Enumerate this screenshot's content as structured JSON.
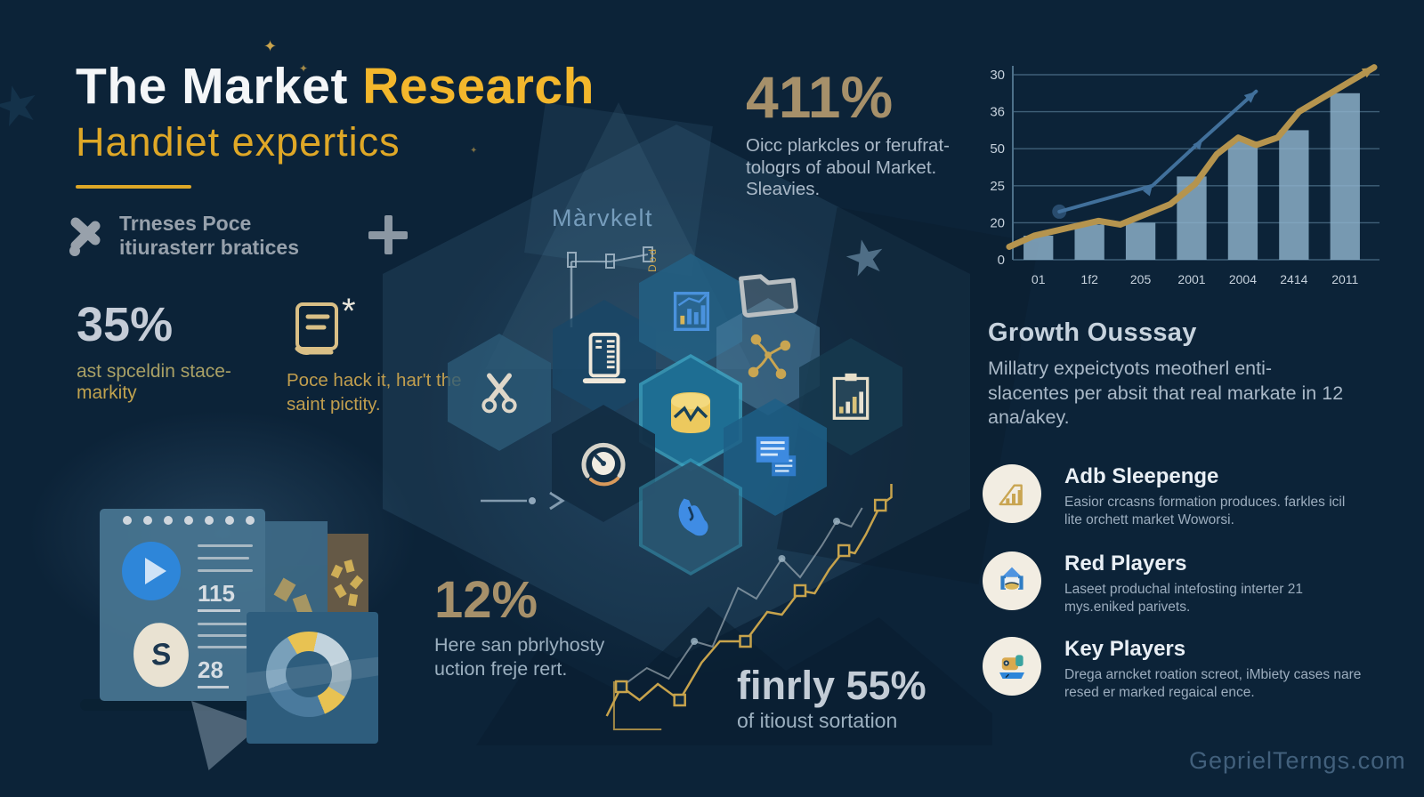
{
  "header": {
    "title_white": "The Market ",
    "title_accent": "Research",
    "subtitle": "Handiet expertics",
    "tagline_line1": "Trneses Poce",
    "tagline_line2": "itiurasterr bratices"
  },
  "deco": {
    "marvkelt_label": "Màrvkelt",
    "doc_label": "Dod",
    "star_glyph": "★",
    "sparkle_glyph": "✦"
  },
  "stats": {
    "s411": {
      "value": "411%",
      "desc": "Oicc plarkcles or ferufrat- tologrs of aboul Market. Sleavies."
    },
    "s35": {
      "value": "35%",
      "desc_line1": "ast spceldin stace-",
      "desc_line2": "markity"
    },
    "s12": {
      "value": "12%",
      "desc": "Here san pbrlyhosty uction freje rert."
    },
    "s55": {
      "value": "finrly 55%",
      "desc": "of itioust sortation"
    }
  },
  "booknote": {
    "aster": "*",
    "lines": "Poce hack it, har't the saint pictity."
  },
  "growth": {
    "heading": "Growth Ousssay",
    "body": "Millatry expeictyots  meotherl enti-slacentes per absit that real markate in 12 ana/akey."
  },
  "players": [
    {
      "title": "Adb Sleepenge",
      "desc": "Easior crcasns formation produces. farkles icil lite orchett market Woworsi.",
      "icon": "growth-bars-icon"
    },
    {
      "title": "Red Players",
      "desc": "Laseet produchal intefosting interter 21 mys.eniked parivets.",
      "icon": "home-monitor-icon"
    },
    {
      "title": "Key Players",
      "desc": "Drega arncket roation screot, iMbiety cases nare resed er marked regaical ence.",
      "icon": "projector-icon"
    }
  ],
  "window_mockup": {
    "num1": "115",
    "num2": "28",
    "s_label": "S"
  },
  "watermark": "GeprielTerngs.com",
  "chart_data": [
    {
      "type": "bar",
      "note": "bar chart with two trend lines, top right",
      "x_tick_labels": [
        "01",
        "1f2",
        "205",
        "2001",
        "2004",
        "2414",
        "2011"
      ],
      "y_tick_labels": [
        "30",
        "36",
        "50",
        "25",
        "20",
        "0"
      ],
      "bars_pct": [
        13,
        19,
        20,
        45,
        64,
        70,
        90
      ],
      "series": [
        {
          "name": "gold-trend",
          "x_pct": [
            -1,
            6,
            24,
            30,
            44,
            51,
            57,
            63,
            68,
            74,
            80,
            101
          ],
          "y_pct": [
            7,
            13,
            21,
            19,
            30,
            41,
            57,
            66,
            62,
            66,
            80,
            104
          ]
        },
        {
          "name": "blue-trend",
          "x_pct": [
            13,
            39,
            53,
            68
          ],
          "y_pct": [
            26,
            40,
            65,
            91
          ]
        }
      ],
      "colors": {
        "bar": "#8fb3cc",
        "gold": "#b5944e",
        "blue": "#41709b",
        "grid": "#4d7089",
        "text": "#c6d1dc"
      },
      "grid": true,
      "legend": false
    },
    {
      "type": "pie",
      "note": "donut chart in lower-left panel",
      "segments": [
        {
          "color": "#e8c252",
          "deg": 42
        },
        {
          "color": "#c2d3dd",
          "deg": 58
        },
        {
          "color": "#8fa9b8",
          "deg": 52
        },
        {
          "color": "#e8c252",
          "deg": 36
        },
        {
          "color": "#4a7a9d",
          "deg": 92
        },
        {
          "color": "#79a0ba",
          "deg": 80
        }
      ],
      "start_deg": -30
    },
    {
      "type": "line",
      "note": "decorative rising step line, bottom center",
      "gold_points_pct": [
        [
          17,
          91
        ],
        [
          21,
          80
        ],
        [
          26,
          85
        ],
        [
          31,
          79
        ],
        [
          37,
          85
        ],
        [
          43,
          71
        ],
        [
          48,
          63
        ],
        [
          55,
          63
        ],
        [
          61,
          52
        ],
        [
          65,
          53
        ],
        [
          70,
          44
        ],
        [
          74,
          45
        ],
        [
          78,
          36
        ],
        [
          82,
          29
        ],
        [
          85,
          30
        ],
        [
          88,
          23
        ],
        [
          92,
          12
        ],
        [
          95,
          9
        ],
        [
          95,
          4
        ]
      ],
      "gold_marker_idx": [
        1,
        4,
        7,
        10,
        13,
        16
      ],
      "gray_points_pct": [
        [
          20,
          81
        ],
        [
          28,
          73
        ],
        [
          34,
          77
        ],
        [
          41,
          63
        ],
        [
          46,
          65
        ],
        [
          53,
          43
        ],
        [
          58,
          47
        ],
        [
          65,
          32
        ],
        [
          70,
          39
        ],
        [
          76,
          27
        ],
        [
          80,
          18
        ],
        [
          84,
          20
        ],
        [
          87,
          13
        ]
      ],
      "gray_dot_idx": [
        3,
        7,
        10
      ],
      "axis_pct": [
        [
          19,
          78
        ],
        [
          19,
          96
        ],
        [
          32,
          96
        ]
      ],
      "colors": {
        "gold": "#c7a34c",
        "gray": "#c3cdd4",
        "dot": "#9fb6c6"
      }
    }
  ]
}
